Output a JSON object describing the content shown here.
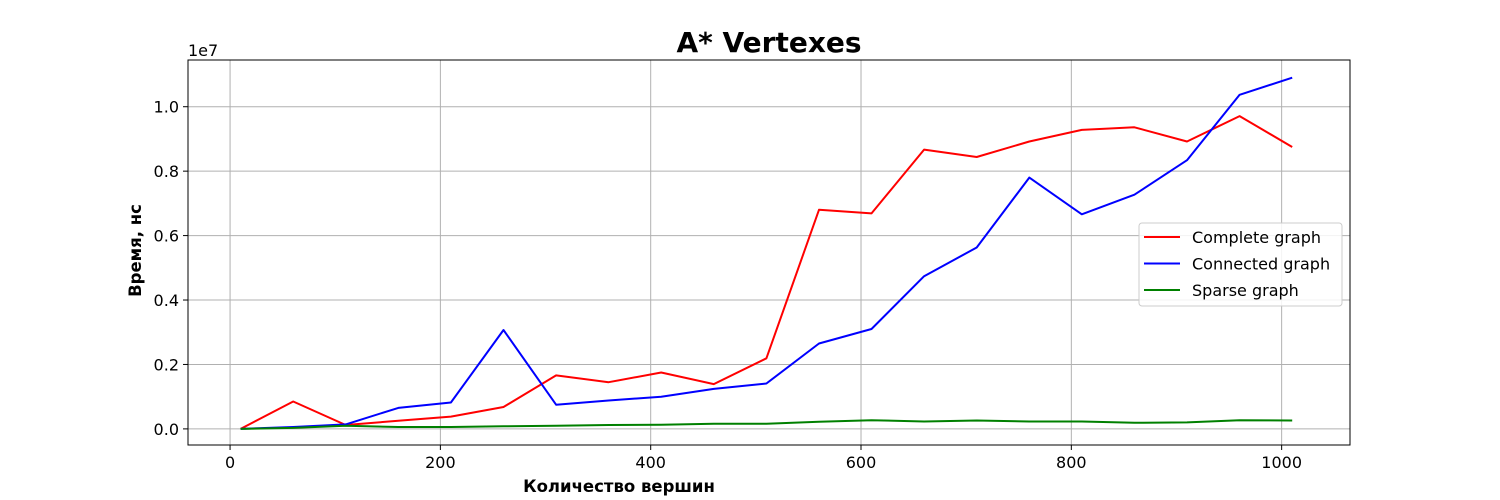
{
  "chart_data": {
    "type": "line",
    "title": "A* Vertexes",
    "xlabel": "Количество вершин",
    "ylabel": "Время, нс",
    "y_offset_label": "1e7",
    "xlim": [
      -40,
      1065
    ],
    "ylim": [
      -0.05,
      1.145
    ],
    "x_ticks": [
      0,
      200,
      400,
      600,
      800,
      1000
    ],
    "x_tick_labels": [
      "0",
      "200",
      "400",
      "600",
      "800",
      "1000"
    ],
    "y_ticks": [
      0.0,
      0.2,
      0.4,
      0.6,
      0.8,
      1.0
    ],
    "y_tick_labels": [
      "0.0",
      "0.2",
      "0.4",
      "0.6",
      "0.8",
      "1.0"
    ],
    "grid": true,
    "legend_position": "center-right",
    "x": [
      10,
      60,
      110,
      160,
      210,
      260,
      310,
      360,
      410,
      460,
      510,
      560,
      610,
      660,
      710,
      760,
      810,
      860,
      910,
      960,
      1010
    ],
    "series": [
      {
        "name": "Complete graph",
        "color": "#ff0000",
        "values": [
          0.0,
          0.085,
          0.012,
          0.025,
          0.038,
          0.068,
          0.166,
          0.145,
          0.175,
          0.139,
          0.219,
          0.68,
          0.669,
          0.867,
          0.844,
          0.892,
          0.928,
          0.936,
          0.892,
          0.971,
          0.875
        ]
      },
      {
        "name": "Connected graph",
        "color": "#0000ff",
        "values": [
          0.0,
          0.006,
          0.014,
          0.065,
          0.082,
          0.307,
          0.075,
          0.088,
          0.1,
          0.124,
          0.141,
          0.265,
          0.31,
          0.474,
          0.563,
          0.78,
          0.666,
          0.727,
          0.834,
          1.037,
          1.09
        ]
      },
      {
        "name": "Sparse graph",
        "color": "#008000",
        "values": [
          0.0,
          0.003,
          0.01,
          0.006,
          0.006,
          0.008,
          0.01,
          0.012,
          0.013,
          0.016,
          0.016,
          0.022,
          0.027,
          0.023,
          0.026,
          0.023,
          0.023,
          0.019,
          0.02,
          0.027,
          0.026
        ]
      }
    ]
  }
}
